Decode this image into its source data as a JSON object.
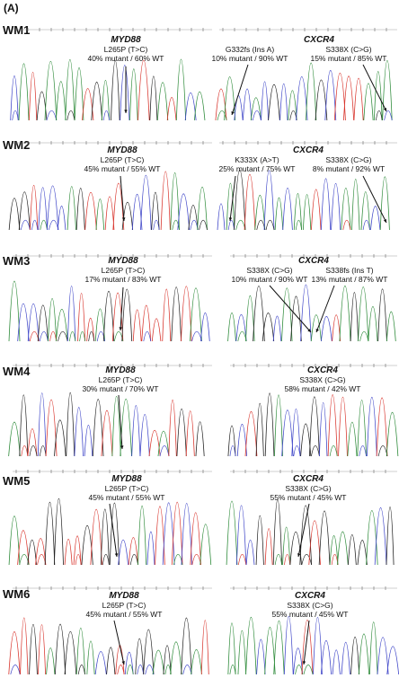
{
  "panel_label": "(A)",
  "rows": [
    {
      "label": "WM1",
      "left": {
        "gene": "MYD88",
        "lines": [
          "L265P (T>C)",
          "40% mutant / 60% WT"
        ]
      },
      "right": {
        "gene": "CXCR4",
        "annotations": [
          {
            "lines": [
              "G332fs (Ins A)",
              "10% mutant / 90% WT"
            ]
          },
          {
            "lines": [
              "S338X (C>G)",
              "15% mutant / 85% WT"
            ]
          }
        ]
      }
    },
    {
      "label": "WM2",
      "left": {
        "gene": "MYD88",
        "lines": [
          "L265P (T>C)",
          "45% mutant / 55% WT"
        ]
      },
      "right": {
        "gene": "CXCR4",
        "annotations": [
          {
            "lines": [
              "K333X (A>T)",
              "25% mutant / 75% WT"
            ]
          },
          {
            "lines": [
              "S338X (C>G)",
              "8% mutant / 92% WT"
            ]
          }
        ]
      }
    },
    {
      "label": "WM3",
      "left": {
        "gene": "MYD88",
        "lines": [
          "L265P (T>C)",
          "17% mutant / 83% WT"
        ]
      },
      "right": {
        "gene": "CXCR4",
        "annotations": [
          {
            "lines": [
              "S338X (C>G)",
              "10% mutant / 90% WT"
            ]
          },
          {
            "lines": [
              "S338fs (Ins T)",
              "13% mutant / 87% WT"
            ]
          }
        ]
      }
    },
    {
      "label": "WM4",
      "left": {
        "gene": "MYD88",
        "lines": [
          "L265P (T>C)",
          "30% mutant / 70% WT"
        ]
      },
      "right": {
        "gene": "CXCR4",
        "annotations": [
          {
            "lines": [
              "S338X (C>G)",
              "58% mutant / 42% WT"
            ]
          }
        ]
      }
    },
    {
      "label": "WM5",
      "left": {
        "gene": "MYD88",
        "lines": [
          "L265P (T>C)",
          "45% mutant / 55% WT"
        ]
      },
      "right": {
        "gene": "CXCR4",
        "annotations": [
          {
            "lines": [
              "S338X (C>G)",
              "55% mutant / 45% WT"
            ]
          }
        ]
      }
    },
    {
      "label": "WM6",
      "left": {
        "gene": "MYD88",
        "lines": [
          "L265P (T>C)",
          "45% mutant / 55% WT"
        ]
      },
      "right": {
        "gene": "CXCR4",
        "annotations": [
          {
            "lines": [
              "S338X (C>G)",
              "55% mutant / 45% WT"
            ]
          }
        ]
      }
    }
  ],
  "trace_colors": {
    "A": "#2e8b3a",
    "C": "#3f46c8",
    "G": "#222222",
    "T": "#d8342c"
  }
}
